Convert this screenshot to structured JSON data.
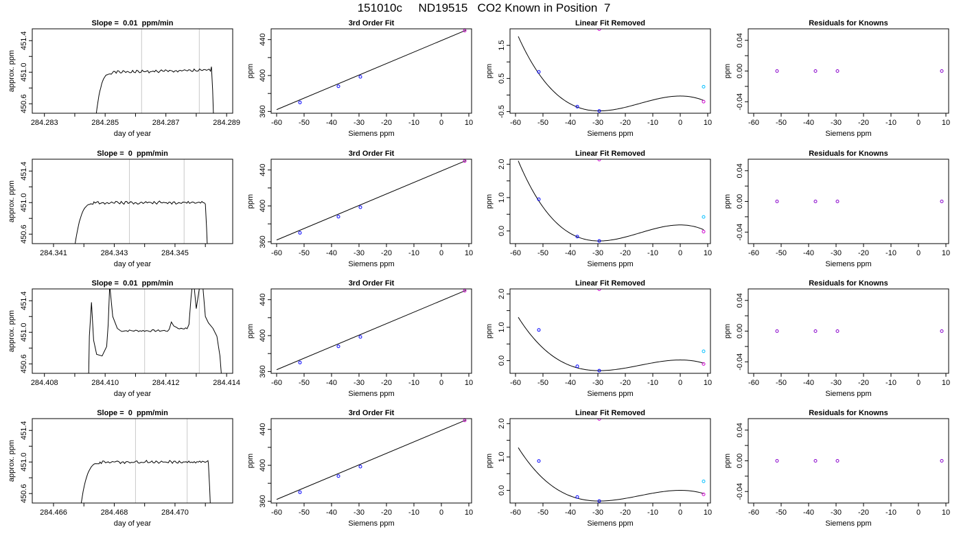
{
  "figure_title": "151010c     ND19515   CO2 Known in Position  7",
  "colors": {
    "trace": "#000000",
    "point_blue": "#0000ff",
    "point_magenta": "#cc00cc",
    "point_cyan": "#00bfff",
    "point_purple": "#8800cc",
    "vline": "#c8c8c8"
  },
  "chart_data": [
    {
      "row": 0,
      "col": 0,
      "type": "line",
      "title": "Slope =  0.01  ppm/min",
      "xlabel": "day of year",
      "ylabel": "approx. ppm",
      "xlim": [
        284.2826,
        284.2892
      ],
      "ylim": [
        450.48,
        451.55
      ],
      "xticks": [
        284.283,
        284.285,
        284.287,
        284.289
      ],
      "xtick_labels": [
        "284.283",
        "284.285",
        "284.287",
        "284.289"
      ],
      "xminor": [
        284.284,
        284.286,
        284.288
      ],
      "yticks": [
        450.6,
        451.0,
        451.4
      ],
      "ytick_labels": [
        "450.6",
        "451.0",
        "451.4"
      ],
      "yminor": [
        450.8,
        451.2
      ],
      "vlines": [
        284.2862,
        284.2881
      ],
      "trace": {
        "x_start": 284.2847,
        "x_end": 284.2888,
        "rise_end": 284.2852,
        "plateau": 451.0,
        "plateau_slope": 0.025,
        "start_y": 450.45,
        "end_x": 284.2885,
        "end_y": 451.07,
        "noise": 0.012,
        "seed": 1
      }
    },
    {
      "row": 0,
      "col": 1,
      "type": "scatter",
      "title": "3rd Order Fit",
      "xlabel": "Siemens ppm",
      "ylabel": "ppm",
      "xlim": [
        -62,
        11
      ],
      "ylim": [
        358,
        452
      ],
      "xticks": [
        -60,
        -50,
        -40,
        -30,
        -20,
        -10,
        0,
        10
      ],
      "xtick_labels": [
        "-60",
        "-50",
        "-40",
        "-30",
        "-20",
        "-10",
        "0",
        "10"
      ],
      "yticks": [
        360,
        400,
        440
      ],
      "ytick_labels": [
        "360",
        "400",
        "440"
      ],
      "yminor": [
        380,
        420
      ],
      "curve": {
        "x": [
          -60,
          9
        ],
        "y": [
          362,
          450.5
        ]
      },
      "points": [
        {
          "x": -51.5,
          "y": 370,
          "c": "point_blue"
        },
        {
          "x": -37.5,
          "y": 388,
          "c": "point_blue"
        },
        {
          "x": -29.5,
          "y": 398.5,
          "c": "point_blue"
        },
        {
          "x": 8.5,
          "y": 450,
          "c": "point_magenta"
        }
      ]
    },
    {
      "row": 0,
      "col": 2,
      "type": "scatter",
      "title": "Linear Fit Removed",
      "xlabel": "Siemens ppm",
      "ylabel": "ppm",
      "xlim": [
        -62,
        11
      ],
      "ylim": [
        -0.55,
        2.0
      ],
      "xticks": [
        -60,
        -50,
        -40,
        -30,
        -20,
        -10,
        0,
        10
      ],
      "xtick_labels": [
        "-60",
        "-50",
        "-40",
        "-30",
        "-20",
        "-10",
        "0",
        "10"
      ],
      "yticks": [
        -0.5,
        0.5,
        1.5
      ],
      "ytick_labels": [
        "-0.5",
        "0.5",
        "1.5"
      ],
      "yminor": [
        0.0,
        1.0
      ],
      "cubic": {
        "x0": -59,
        "y0": 1.85,
        "xmin": -29.5,
        "ymin": -0.48,
        "xmax": 0,
        "ymax": -0.03,
        "x1": 8.5
      },
      "points": [
        {
          "x": -51.5,
          "y": 0.7,
          "c": "point_blue"
        },
        {
          "x": -37.5,
          "y": -0.35,
          "c": "point_blue"
        },
        {
          "x": -29.5,
          "y": -0.48,
          "c": "point_blue"
        },
        {
          "x": -29.5,
          "y": 1.99,
          "c": "point_magenta"
        },
        {
          "x": 8.5,
          "y": 0.25,
          "c": "point_cyan"
        },
        {
          "x": 8.5,
          "y": -0.2,
          "c": "point_magenta"
        }
      ]
    },
    {
      "row": 0,
      "col": 3,
      "type": "scatter",
      "title": "Residuals for Knowns",
      "xlabel": "Siemens ppm",
      "ylabel": "ppm",
      "xlim": [
        -62,
        11
      ],
      "ylim": [
        -0.055,
        0.055
      ],
      "xticks": [
        -60,
        -50,
        -40,
        -30,
        -20,
        -10,
        0,
        10
      ],
      "xtick_labels": [
        "-60",
        "-50",
        "-40",
        "-30",
        "-20",
        "-10",
        "0",
        "10"
      ],
      "yticks": [
        -0.04,
        0.0,
        0.04
      ],
      "ytick_labels": [
        "-0.04",
        "0.00",
        "0.04"
      ],
      "yminor": [
        -0.02,
        0.02
      ],
      "points": [
        {
          "x": -51.5,
          "y": 0,
          "c": "point_purple"
        },
        {
          "x": -37.5,
          "y": 0,
          "c": "point_purple"
        },
        {
          "x": -29.5,
          "y": 0,
          "c": "point_purple"
        },
        {
          "x": 8.5,
          "y": 0,
          "c": "point_purple"
        }
      ]
    },
    {
      "row": 1,
      "col": 0,
      "type": "line",
      "title": "Slope =  0  ppm/min",
      "xlabel": "day of year",
      "ylabel": "approx. ppm",
      "xlim": [
        284.3403,
        284.3469
      ],
      "ylim": [
        450.48,
        451.55
      ],
      "xticks": [
        284.341,
        284.343,
        284.345
      ],
      "xtick_labels": [
        "284.341",
        "284.343",
        "284.345"
      ],
      "xminor": [
        284.342,
        284.344,
        284.346
      ],
      "yticks": [
        450.6,
        451.0,
        451.4
      ],
      "ytick_labels": [
        "450.6",
        "451.0",
        "451.4"
      ],
      "yminor": [
        450.8,
        451.2
      ],
      "vlines": [
        284.3435,
        284.3453
      ],
      "trace": {
        "x_start": 284.3417,
        "x_end": 284.3461,
        "rise_end": 284.3423,
        "plateau": 451.0,
        "plateau_slope": 0.0,
        "start_y": 450.45,
        "end_x": 284.346,
        "end_y": 450.98,
        "noise": 0.012,
        "seed": 2
      }
    },
    {
      "row": 1,
      "col": 1,
      "type": "scatter",
      "title": "3rd Order Fit",
      "xlabel": "Siemens ppm",
      "ylabel": "ppm",
      "xlim": [
        -62,
        11
      ],
      "ylim": [
        358,
        452
      ],
      "xticks": [
        -60,
        -50,
        -40,
        -30,
        -20,
        -10,
        0,
        10
      ],
      "xtick_labels": [
        "-60",
        "-50",
        "-40",
        "-30",
        "-20",
        "-10",
        "0",
        "10"
      ],
      "yticks": [
        360,
        400,
        440
      ],
      "ytick_labels": [
        "360",
        "400",
        "440"
      ],
      "yminor": [
        380,
        420
      ],
      "curve": {
        "x": [
          -60,
          9
        ],
        "y": [
          362,
          450.5
        ]
      },
      "points": [
        {
          "x": -51.5,
          "y": 370,
          "c": "point_blue"
        },
        {
          "x": -37.5,
          "y": 388,
          "c": "point_blue"
        },
        {
          "x": -29.5,
          "y": 398.5,
          "c": "point_blue"
        },
        {
          "x": 8.5,
          "y": 450,
          "c": "point_magenta"
        }
      ]
    },
    {
      "row": 1,
      "col": 2,
      "type": "scatter",
      "title": "Linear Fit Removed",
      "xlabel": "Siemens ppm",
      "ylabel": "ppm",
      "xlim": [
        -62,
        11
      ],
      "ylim": [
        -0.38,
        2.15
      ],
      "xticks": [
        -60,
        -50,
        -40,
        -30,
        -20,
        -10,
        0,
        10
      ],
      "xtick_labels": [
        "-60",
        "-50",
        "-40",
        "-30",
        "-20",
        "-10",
        "0",
        "10"
      ],
      "yticks": [
        0.0,
        1.0,
        2.0
      ],
      "ytick_labels": [
        "0.0",
        "1.0",
        "2.0"
      ],
      "yminor": [
        0.5,
        1.5
      ],
      "cubic": {
        "x0": -59,
        "y0": 2.05,
        "xmin": -29.5,
        "ymin": -0.3,
        "xmax": 0,
        "ymax": 0.18,
        "x1": 8.5
      },
      "points": [
        {
          "x": -51.5,
          "y": 0.95,
          "c": "point_blue"
        },
        {
          "x": -37.5,
          "y": -0.17,
          "c": "point_blue"
        },
        {
          "x": -29.5,
          "y": -0.3,
          "c": "point_blue"
        },
        {
          "x": -29.5,
          "y": 2.14,
          "c": "point_magenta"
        },
        {
          "x": 8.5,
          "y": 0.42,
          "c": "point_cyan"
        },
        {
          "x": 8.5,
          "y": -0.02,
          "c": "point_magenta"
        }
      ]
    },
    {
      "row": 1,
      "col": 3,
      "type": "scatter",
      "title": "Residuals for Knowns",
      "xlabel": "Siemens ppm",
      "ylabel": "ppm",
      "xlim": [
        -62,
        11
      ],
      "ylim": [
        -0.055,
        0.055
      ],
      "xticks": [
        -60,
        -50,
        -40,
        -30,
        -20,
        -10,
        0,
        10
      ],
      "xtick_labels": [
        "-60",
        "-50",
        "-40",
        "-30",
        "-20",
        "-10",
        "0",
        "10"
      ],
      "yticks": [
        -0.04,
        0.0,
        0.04
      ],
      "ytick_labels": [
        "-0.04",
        "0.00",
        "0.04"
      ],
      "yminor": [
        -0.02,
        0.02
      ],
      "points": [
        {
          "x": -51.5,
          "y": 0,
          "c": "point_purple"
        },
        {
          "x": -37.5,
          "y": 0,
          "c": "point_purple"
        },
        {
          "x": -29.5,
          "y": 0,
          "c": "point_purple"
        },
        {
          "x": 8.5,
          "y": 0,
          "c": "point_purple"
        }
      ]
    },
    {
      "row": 2,
      "col": 0,
      "type": "line",
      "title": "Slope =  0.01  ppm/min",
      "xlabel": "day of year",
      "ylabel": "approx. ppm",
      "xlim": [
        284.4076,
        284.4142
      ],
      "ylim": [
        450.48,
        451.55
      ],
      "xticks": [
        284.408,
        284.41,
        284.412,
        284.414
      ],
      "xtick_labels": [
        "284.408",
        "284.410",
        "284.412",
        "284.414"
      ],
      "xminor": [
        284.409,
        284.411,
        284.413
      ],
      "yticks": [
        450.6,
        451.0,
        451.4
      ],
      "ytick_labels": [
        "450.6",
        "451.0",
        "451.4"
      ],
      "yminor": [
        450.8,
        451.2
      ],
      "vlines": [
        284.4113,
        284.4131
      ],
      "spiky": true
    },
    {
      "row": 2,
      "col": 1,
      "type": "scatter",
      "title": "3rd Order Fit",
      "xlabel": "Siemens ppm",
      "ylabel": "ppm",
      "xlim": [
        -62,
        11
      ],
      "ylim": [
        358,
        452
      ],
      "xticks": [
        -60,
        -50,
        -40,
        -30,
        -20,
        -10,
        0,
        10
      ],
      "xtick_labels": [
        "-60",
        "-50",
        "-40",
        "-30",
        "-20",
        "-10",
        "0",
        "10"
      ],
      "yticks": [
        360,
        400,
        440
      ],
      "ytick_labels": [
        "360",
        "400",
        "440"
      ],
      "yminor": [
        380,
        420
      ],
      "curve": {
        "x": [
          -60,
          9
        ],
        "y": [
          362,
          450.5
        ]
      },
      "points": [
        {
          "x": -51.5,
          "y": 370,
          "c": "point_blue"
        },
        {
          "x": -37.5,
          "y": 388,
          "c": "point_blue"
        },
        {
          "x": -29.5,
          "y": 398.5,
          "c": "point_blue"
        },
        {
          "x": 8.5,
          "y": 450,
          "c": "point_magenta"
        }
      ]
    },
    {
      "row": 2,
      "col": 2,
      "type": "scatter",
      "title": "Linear Fit Removed",
      "xlabel": "Siemens ppm",
      "ylabel": "ppm",
      "xlim": [
        -62,
        11
      ],
      "ylim": [
        -0.38,
        2.15
      ],
      "xticks": [
        -60,
        -50,
        -40,
        -30,
        -20,
        -10,
        0,
        10
      ],
      "xtick_labels": [
        "-60",
        "-50",
        "-40",
        "-30",
        "-20",
        "-10",
        "0",
        "10"
      ],
      "yticks": [
        0.0,
        1.0,
        2.0
      ],
      "ytick_labels": [
        "0.0",
        "1.0",
        "2.0"
      ],
      "yminor": [
        0.5,
        1.5
      ],
      "cubic": {
        "x0": -59,
        "y0": 2.05,
        "xmin": -29.5,
        "ymin": -0.3,
        "xmax": 0,
        "ymax": 0.02,
        "x1": 8.5
      },
      "points": [
        {
          "x": -51.5,
          "y": 0.92,
          "c": "point_blue"
        },
        {
          "x": -37.5,
          "y": -0.17,
          "c": "point_blue"
        },
        {
          "x": -29.5,
          "y": -0.3,
          "c": "point_blue"
        },
        {
          "x": -29.5,
          "y": 2.14,
          "c": "point_magenta"
        },
        {
          "x": 8.5,
          "y": 0.28,
          "c": "point_cyan"
        },
        {
          "x": 8.5,
          "y": -0.1,
          "c": "point_magenta"
        }
      ]
    },
    {
      "row": 2,
      "col": 3,
      "type": "scatter",
      "title": "Residuals for Knowns",
      "xlabel": "Siemens ppm",
      "ylabel": "ppm",
      "xlim": [
        -62,
        11
      ],
      "ylim": [
        -0.055,
        0.055
      ],
      "xticks": [
        -60,
        -50,
        -40,
        -30,
        -20,
        -10,
        0,
        10
      ],
      "xtick_labels": [
        "-60",
        "-50",
        "-40",
        "-30",
        "-20",
        "-10",
        "0",
        "10"
      ],
      "yticks": [
        -0.04,
        0.0,
        0.04
      ],
      "ytick_labels": [
        "-0.04",
        "0.00",
        "0.04"
      ],
      "yminor": [
        -0.02,
        0.02
      ],
      "points": [
        {
          "x": -51.5,
          "y": 0,
          "c": "point_purple"
        },
        {
          "x": -37.5,
          "y": 0,
          "c": "point_purple"
        },
        {
          "x": -29.5,
          "y": 0,
          "c": "point_purple"
        },
        {
          "x": 8.5,
          "y": 0,
          "c": "point_purple"
        }
      ]
    },
    {
      "row": 3,
      "col": 0,
      "type": "line",
      "title": "Slope =  0  ppm/min",
      "xlabel": "day of year",
      "ylabel": "approx. ppm",
      "xlim": [
        284.4653,
        284.4719
      ],
      "ylim": [
        450.48,
        451.55
      ],
      "xticks": [
        284.466,
        284.468,
        284.47
      ],
      "xtick_labels": [
        "284.466",
        "284.468",
        "284.470"
      ],
      "xminor": [
        284.467,
        284.469,
        284.471
      ],
      "yticks": [
        450.6,
        451.0,
        451.4
      ],
      "ytick_labels": [
        "450.6",
        "451.0",
        "451.4"
      ],
      "yminor": [
        450.8,
        451.2
      ],
      "vlines": [
        284.4687,
        284.4704
      ],
      "trace": {
        "x_start": 284.4669,
        "x_end": 284.4713,
        "rise_end": 284.4675,
        "plateau": 451.0,
        "plateau_slope": 0.0,
        "start_y": 450.45,
        "end_x": 284.4711,
        "end_y": 450.98,
        "noise": 0.012,
        "seed": 4
      }
    },
    {
      "row": 3,
      "col": 1,
      "type": "scatter",
      "title": "3rd Order Fit",
      "xlabel": "Siemens ppm",
      "ylabel": "ppm",
      "xlim": [
        -62,
        11
      ],
      "ylim": [
        358,
        452
      ],
      "xticks": [
        -60,
        -50,
        -40,
        -30,
        -20,
        -10,
        0,
        10
      ],
      "xtick_labels": [
        "-60",
        "-50",
        "-40",
        "-30",
        "-20",
        "-10",
        "0",
        "10"
      ],
      "yticks": [
        360,
        400,
        440
      ],
      "ytick_labels": [
        "360",
        "400",
        "440"
      ],
      "yminor": [
        380,
        420
      ],
      "curve": {
        "x": [
          -60,
          9
        ],
        "y": [
          362,
          450.5
        ]
      },
      "points": [
        {
          "x": -51.5,
          "y": 370,
          "c": "point_blue"
        },
        {
          "x": -37.5,
          "y": 388,
          "c": "point_blue"
        },
        {
          "x": -29.5,
          "y": 398.5,
          "c": "point_blue"
        },
        {
          "x": 8.5,
          "y": 450,
          "c": "point_magenta"
        }
      ]
    },
    {
      "row": 3,
      "col": 2,
      "type": "scatter",
      "title": "Linear Fit Removed",
      "xlabel": "Siemens ppm",
      "ylabel": "ppm",
      "xlim": [
        -62,
        11
      ],
      "ylim": [
        -0.38,
        2.15
      ],
      "xticks": [
        -60,
        -50,
        -40,
        -30,
        -20,
        -10,
        0,
        10
      ],
      "xtick_labels": [
        "-60",
        "-50",
        "-40",
        "-30",
        "-20",
        "-10",
        "0",
        "10"
      ],
      "yticks": [
        0.0,
        1.0,
        2.0
      ],
      "ytick_labels": [
        "0.0",
        "1.0",
        "2.0"
      ],
      "yminor": [
        0.5,
        1.5
      ],
      "cubic": {
        "x0": -59,
        "y0": 2.0,
        "xmin": -29.5,
        "ymin": -0.32,
        "xmax": 0,
        "ymax": 0.0,
        "x1": 8.5
      },
      "points": [
        {
          "x": -51.5,
          "y": 0.88,
          "c": "point_blue"
        },
        {
          "x": -37.5,
          "y": -0.2,
          "c": "point_blue"
        },
        {
          "x": -29.5,
          "y": -0.32,
          "c": "point_blue"
        },
        {
          "x": -29.5,
          "y": 2.14,
          "c": "point_magenta"
        },
        {
          "x": 8.5,
          "y": 0.27,
          "c": "point_cyan"
        },
        {
          "x": 8.5,
          "y": -0.12,
          "c": "point_magenta"
        }
      ]
    },
    {
      "row": 3,
      "col": 3,
      "type": "scatter",
      "title": "Residuals for Knowns",
      "xlabel": "Siemens ppm",
      "ylabel": "ppm",
      "xlim": [
        -62,
        11
      ],
      "ylim": [
        -0.055,
        0.055
      ],
      "xticks": [
        -60,
        -50,
        -40,
        -30,
        -20,
        -10,
        0,
        10
      ],
      "xtick_labels": [
        "-60",
        "-50",
        "-40",
        "-30",
        "-20",
        "-10",
        "0",
        "10"
      ],
      "yticks": [
        -0.04,
        0.0,
        0.04
      ],
      "ytick_labels": [
        "-0.04",
        "0.00",
        "0.04"
      ],
      "yminor": [
        -0.02,
        0.02
      ],
      "points": [
        {
          "x": -51.5,
          "y": 0,
          "c": "point_purple"
        },
        {
          "x": -37.5,
          "y": 0,
          "c": "point_purple"
        },
        {
          "x": -29.5,
          "y": 0,
          "c": "point_purple"
        },
        {
          "x": 8.5,
          "y": 0,
          "c": "point_purple"
        }
      ]
    }
  ]
}
